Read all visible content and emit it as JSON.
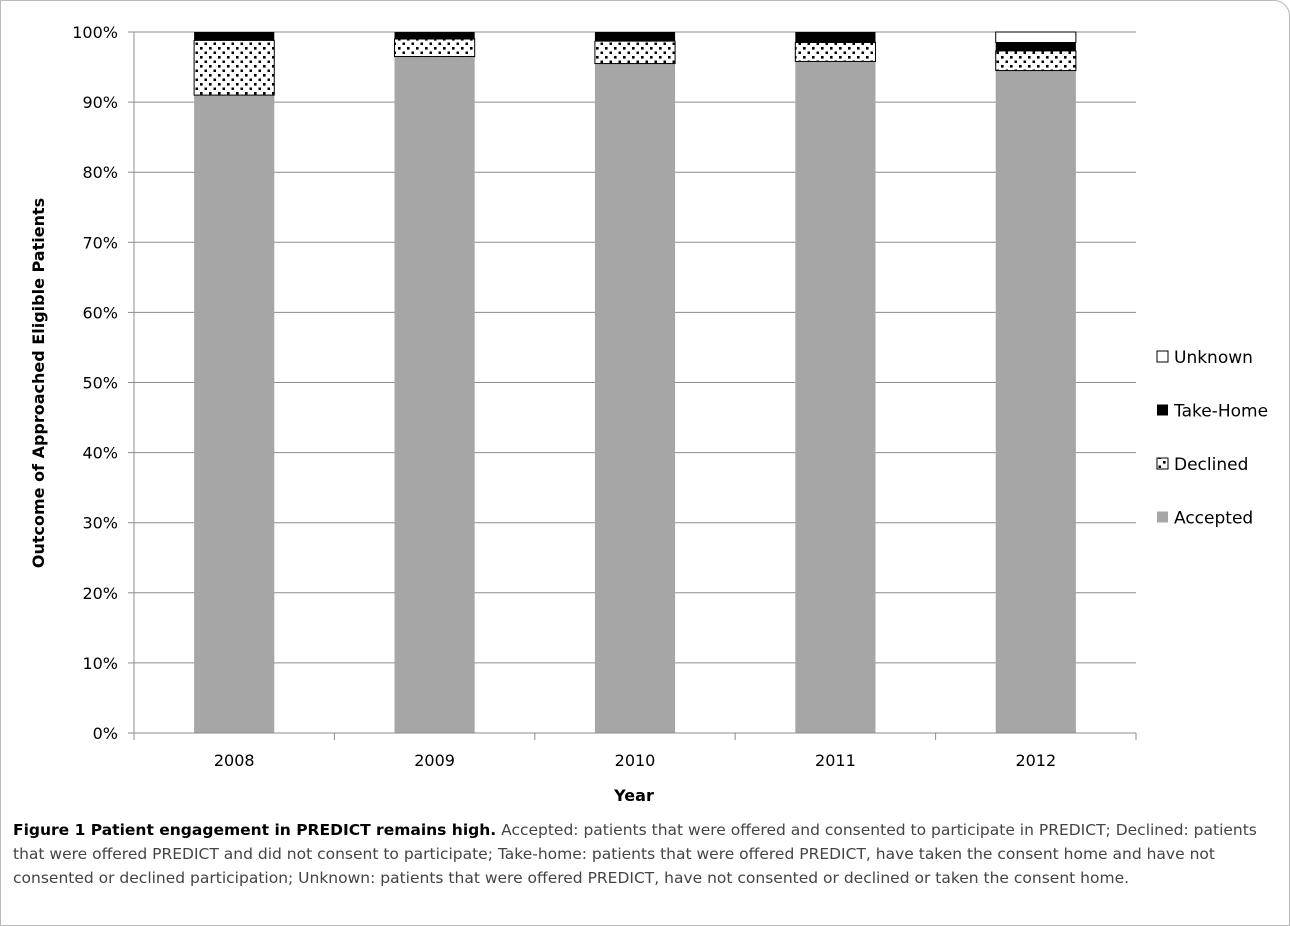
{
  "chart_data": {
    "type": "bar",
    "stacked": true,
    "categories": [
      "2008",
      "2009",
      "2010",
      "2011",
      "2012"
    ],
    "series": [
      {
        "name": "Accepted",
        "values": [
          91.0,
          96.5,
          95.5,
          95.8,
          94.5
        ],
        "color": "#a6a6a6",
        "pattern": "solid"
      },
      {
        "name": "Declined",
        "values": [
          7.8,
          2.5,
          3.2,
          2.7,
          2.8
        ],
        "color": "#ffffff",
        "pattern": "dots"
      },
      {
        "name": "Take-Home",
        "values": [
          1.2,
          1.0,
          1.3,
          1.5,
          1.2
        ],
        "color": "#000000",
        "pattern": "solid"
      },
      {
        "name": "Unknown",
        "values": [
          0,
          0,
          0,
          0,
          1.5
        ],
        "color": "#ffffff",
        "pattern": "solid"
      }
    ],
    "legend_order": [
      "Unknown",
      "Take-Home",
      "Declined",
      "Accepted"
    ],
    "legend_position": "right",
    "xlabel": "Year",
    "ylabel": "Outcome of Approached Eligible Patients",
    "ylim": [
      0,
      100
    ],
    "yticks": [
      "0%",
      "10%",
      "20%",
      "30%",
      "40%",
      "50%",
      "60%",
      "70%",
      "80%",
      "90%",
      "100%"
    ],
    "grid": true
  },
  "caption": {
    "title": "Figure 1 Patient engagement in PREDICT remains high.",
    "text": "Accepted: patients that were offered and consented to participate in PREDICT; Declined: patients that were offered PREDICT and did not consent to participate; Take-home: patients that were offered PREDICT, have taken the consent home and have not consented or declined participation; Unknown: patients that were offered PREDICT, have not consented or declined or taken the consent home."
  }
}
